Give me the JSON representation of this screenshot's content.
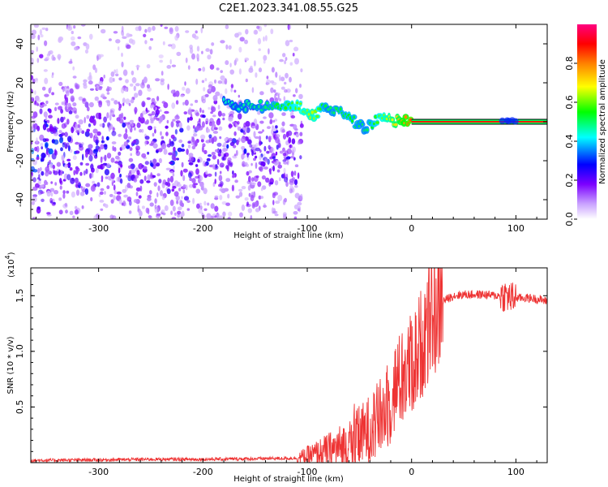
{
  "title": "C2E1.2023.341.08.55.G25",
  "chart_data": [
    {
      "type": "heatmap",
      "xlabel": "Height of straight line (km)",
      "ylabel": "Frequency (Hz)",
      "xlim": [
        -365,
        130
      ],
      "ylim": [
        -50,
        50
      ],
      "xticks": [
        -300,
        -200,
        -100,
        0,
        100
      ],
      "yticks": [
        -40,
        -20,
        0,
        20,
        40
      ],
      "colorbar": {
        "label": "Normalized spectral amplitude",
        "range": [
          0,
          1
        ],
        "ticks": [
          "0.0",
          "0.2",
          "0.4",
          "0.6",
          "0.8"
        ],
        "colors": [
          "#ffffff",
          "#7b00ff",
          "#0000ff",
          "#00ffff",
          "#00ff00",
          "#ffff00",
          "#ff8000",
          "#ff0000",
          "#ff0080"
        ]
      },
      "features": {
        "noise_region_x": [
          -365,
          -105
        ],
        "diffuse_amplitude": 0.1,
        "signal_track": [
          {
            "x": -180,
            "freq": 9,
            "amp": 0.45
          },
          {
            "x": -140,
            "freq": 8,
            "amp": 0.5
          },
          {
            "x": -110,
            "freq": 9,
            "amp": 0.6
          },
          {
            "x": -95,
            "freq": 3,
            "amp": 0.65
          },
          {
            "x": -80,
            "freq": 8,
            "amp": 0.5
          },
          {
            "x": -60,
            "freq": 2,
            "amp": 0.55
          },
          {
            "x": -45,
            "freq": -4,
            "amp": 0.5
          },
          {
            "x": -30,
            "freq": 2,
            "amp": 0.6
          },
          {
            "x": -10,
            "freq": 0,
            "amp": 0.75
          },
          {
            "x": 0,
            "freq": 0,
            "amp": 0.85
          },
          {
            "x": 130,
            "freq": 0,
            "amp": 0.9
          }
        ]
      }
    },
    {
      "type": "line",
      "xlabel": "Height of straight line (km)",
      "ylabel": "SNR (10 * v/v)",
      "multiplier_label": "(x10",
      "multiplier_exp": "4",
      "xlim": [
        -365,
        130
      ],
      "ylim": [
        0,
        1.75
      ],
      "xticks": [
        -300,
        -200,
        -100,
        0,
        100
      ],
      "yticks": [
        0.5,
        1.0,
        1.5
      ],
      "color": "#ee3333",
      "series": [
        {
          "x": [
            -365,
            -300,
            -250,
            -200,
            -150,
            -110,
            -100,
            -90,
            -80,
            -70,
            -60,
            -50,
            -40,
            -30,
            -20,
            -15,
            -10,
            -5,
            0,
            5,
            10,
            15,
            20,
            25,
            30,
            40,
            50,
            60,
            70,
            80,
            90,
            95,
            100,
            110,
            120,
            130
          ],
          "y": [
            0.02,
            0.025,
            0.03,
            0.03,
            0.035,
            0.04,
            0.06,
            0.08,
            0.1,
            0.13,
            0.16,
            0.22,
            0.3,
            0.4,
            0.55,
            0.7,
            0.75,
            0.8,
            0.9,
            0.95,
            1.1,
            1.2,
            1.3,
            1.38,
            1.45,
            1.5,
            1.51,
            1.51,
            1.51,
            1.5,
            1.5,
            1.48,
            1.48,
            1.48,
            1.47,
            1.45
          ]
        }
      ]
    }
  ]
}
